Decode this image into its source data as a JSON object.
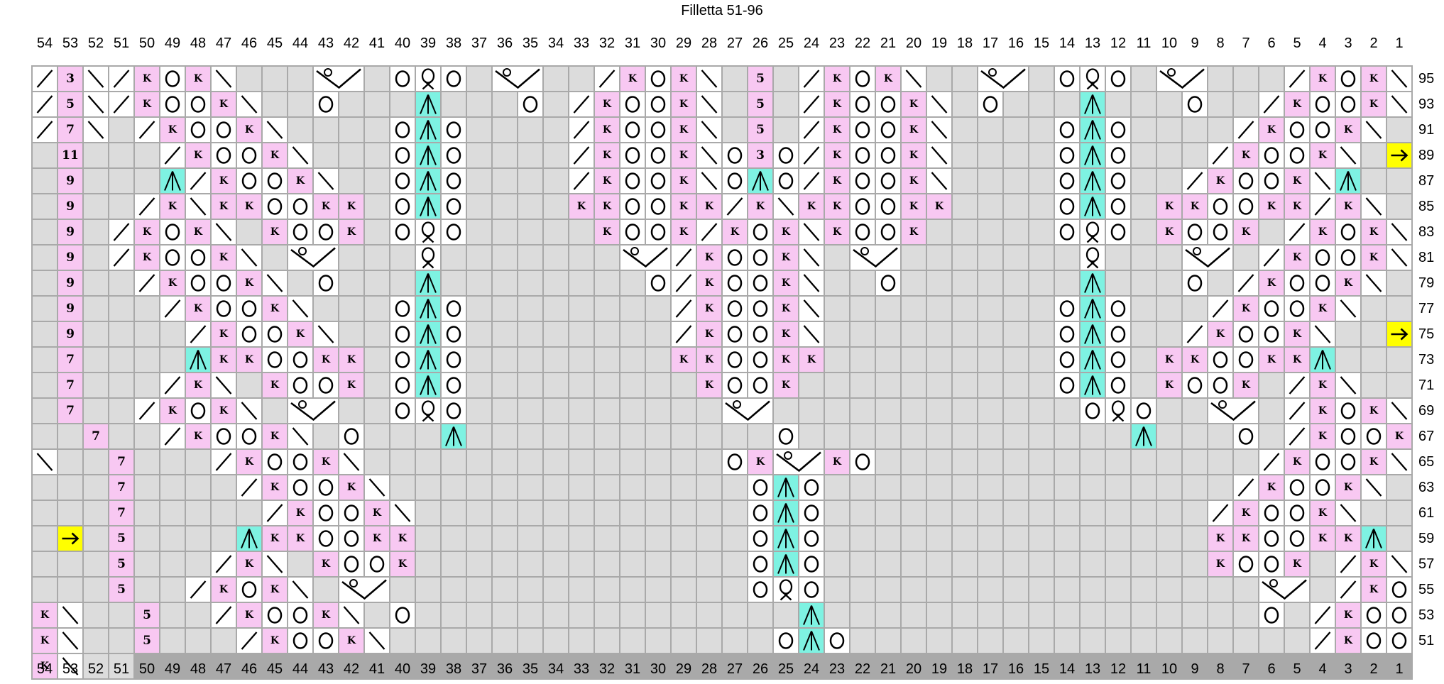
{
  "title": "Filletta 51-96",
  "colors": {
    "no_stitch": "#dcdcdc",
    "twisted_knit_bg": "#f8c8f2",
    "double_decrease_bg": "#7ef2e2",
    "arrow_bg": "#ffff00",
    "grid_line": "#a9a9a9",
    "symbol": "#000000",
    "cell_bg": "#ffffff"
  },
  "columns": [
    54,
    53,
    52,
    51,
    50,
    49,
    48,
    47,
    46,
    45,
    44,
    43,
    42,
    41,
    40,
    39,
    38,
    37,
    36,
    35,
    34,
    33,
    32,
    31,
    30,
    29,
    28,
    27,
    26,
    25,
    24,
    23,
    22,
    21,
    20,
    19,
    18,
    17,
    16,
    15,
    14,
    13,
    12,
    11,
    10,
    9,
    8,
    7,
    6,
    5,
    4,
    3,
    2,
    1
  ],
  "row_labels": [
    95,
    93,
    91,
    89,
    87,
    85,
    83,
    81,
    79,
    77,
    75,
    73,
    71,
    69,
    67,
    65,
    63,
    61,
    59,
    57,
    55,
    53,
    51
  ],
  "symbols_legend": {
    "/": "right-leaning-decrease",
    "\\": "left-leaning-decrease",
    "O": "yarn-over",
    "K": "twisted-knit",
    "A": "centered-double-decrease",
    "Q": "twisted-loop",
    "V": "gather-stitch",
    "v": "gather-stitch-continuation",
    "->": "row-direction-arrow",
    ".": "no-stitch",
    "3": "repeat-count",
    "5": "repeat-count",
    "7": "repeat-count",
    "9": "repeat-count",
    "11": "repeat-count"
  },
  "grid": {
    "rows": [
      {
        "label": "95",
        "cells": "/|3|\\|/|K|O|K|\\|.|.|.|V|v|.|O|Q|O|.|V|v|.|.|/|K|O|K|\\|.|5|.|/|K|O|K|\\|.|.|V|v|.|O|Q|O|.|V|v|.|.|.|/|K|O|K|\\"
      },
      {
        "label": "93",
        "cells": "/|5|\\|/|K|O|O|K|\\|.|.|O|.|.|.|A|.|.|.|O|.|/|K|O|O|K|\\|.|5|.|/|K|O|O|K|\\|.|O|.|.|.|A|.|.|.|O|.|.|/|K|O|O|K|\\"
      },
      {
        "label": "91",
        "cells": "/|7|\\|.|/|K|O|O|K|\\|.|.|.|.|O|A|O|.|.|.|.|/|K|O|O|K|\\|.|5|.|/|K|O|O|K|\\|.|.|.|.|O|A|O|.|.|.|.|/|K|O|O|K|\\|."
      },
      {
        "label": "89",
        "cells": ".|11|.|.|.|/|K|O|O|K|\\|.|.|.|O|A|O|.|.|.|.|/|K|O|O|K|\\|O|3|O|/|K|O|O|K|\\|.|.|.|.|O|A|O|.|.|.|/|K|O|O|K|\\|.|->"
      },
      {
        "label": "87",
        "cells": ".|9|.|.|.|A|/|K|O|O|K|\\|.|.|O|A|O|.|.|.|.|/|K|O|O|K|\\|O|A|O|/|K|O|O|K|\\|.|.|.|.|O|A|O|.|.|/|K|O|O|K|\\|A|.|."
      },
      {
        "label": "85",
        "cells": ".|9|.|.|/|K|\\|K|K|O|O|K|K|.|O|A|O|.|.|.|.|K|K|O|O|K|K|/|K|\\|K|K|O|O|K|K|.|.|.|.|O|A|O|.|K|K|O|O|K|K|/|K|\\|."
      },
      {
        "label": "83",
        "cells": ".|9|.|/|K|O|K|\\|.|K|O|O|K|.|O|Q|O|.|.|.|.|.|K|O|O|K|/|K|O|K|\\|K|O|O|K|.|.|.|.|.|O|Q|O|.|K|O|O|K|.|/|K|O|K|\\"
      },
      {
        "label": "81",
        "cells": ".|9|.|/|K|O|O|K|\\|.|V|v|.|.|.|Q|.|.|.|.|.|.|.|V|v|/|K|O|O|K|\\|.|V|v|.|.|.|.|.|.|.|Q|.|.|.|V|v|.|/|K|O|O|K|\\"
      },
      {
        "label": "79",
        "cells": ".|9|.|.|/|K|O|O|K|\\|.|O|.|.|.|A|.|.|.|.|.|.|.|.|O|/|K|O|O|K|\\|.|.|O|.|.|.|.|.|.|.|A|.|.|.|O|.|/|K|O|O|K|\\|."
      },
      {
        "label": "77",
        "cells": ".|9|.|.|.|/|K|O|O|K|\\|.|.|.|O|A|O|.|.|.|.|.|.|.|.|/|K|O|O|K|\\|.|.|.|.|.|.|.|.|.|O|A|O|.|.|.|/|K|O|O|K|\\|.|."
      },
      {
        "label": "75",
        "cells": ".|9|.|.|.|.|/|K|O|O|K|\\|.|.|O|A|O|.|.|.|.|.|.|.|.|/|K|O|O|K|\\|.|.|.|.|.|.|.|.|.|O|A|O|.|.|/|K|O|O|K|\\|.|.|->"
      },
      {
        "label": "73",
        "cells": ".|7|.|.|.|.|A|K|K|O|O|K|K|.|O|A|O|.|.|.|.|.|.|.|.|K|K|O|O|K|K|.|.|.|.|.|.|.|.|.|O|A|O|.|K|K|O|O|K|K|A|.|.|."
      },
      {
        "label": "71",
        "cells": ".|7|.|.|.|/|K|\\|.|K|O|O|K|.|O|A|O|.|.|.|.|.|.|.|.|.|K|O|O|K|.|.|.|.|.|.|.|.|.|.|O|A|O|.|K|O|O|K|.|/|K|\\|.|."
      },
      {
        "label": "69",
        "cells": ".|7|.|.|/|K|O|K|\\|.|V|v|.|.|O|Q|O|.|.|.|.|.|.|.|.|.|.|V|v|.|.|.|.|.|.|.|.|.|.|.|.|O|Q|O|.|.|V|v|.|/|K|O|K|\\|."
      },
      {
        "label": "67",
        "cells": ".|7|.|.|/|K|O|O|K|\\|.|O|.|.|.|A|.|.|.|.|.|.|.|.|.|.|.|.|O|.|.|.|.|.|.|.|.|.|.|.|.|.|A|.|.|.|O|.|/|K|O|O|K|\\|."
      },
      {
        "label": "65",
        "cells": ".|7|.|.|.|/|K|O|O|K|\\|.|.|.|.|.|.|.|.|.|.|.|.|.|.|O|K|V|v|K|O|.|.|.|.|.|.|.|.|.|.|.|.|.|.|.|/|K|O|O|K|\\|.|."
      },
      {
        "label": "63",
        "cells": ".|7|.|.|.|.|/|K|O|O|K|\\|.|.|.|.|.|.|.|.|.|.|.|.|.|.|O|A|O|.|.|.|.|.|.|.|.|.|.|.|.|.|.|.|.|/|K|O|O|K|\\|.|.|."
      },
      {
        "label": "61",
        "cells": ".|7|.|.|.|.|.|/|K|O|O|K|\\|.|.|.|.|.|.|.|.|.|.|.|.|.|O|A|O|.|.|.|.|.|.|.|.|.|.|.|.|.|.|.|/|K|O|O|K|\\|.|.|.|->"
      },
      {
        "label": "59",
        "cells": ".|5|.|.|.|.|A|K|K|O|O|K|K|.|.|.|.|.|.|.|.|.|.|.|.|.|O|A|O|.|.|.|.|.|.|.|.|.|.|.|.|.|.|.|K|K|O|O|K|K|A|.|.|."
      },
      {
        "label": "57",
        "cells": ".|5|.|.|.|/|K|\\|.|K|O|O|K|.|.|.|.|.|.|.|.|.|.|.|.|.|O|A|O|.|.|.|.|.|.|.|.|.|.|.|.|.|.|.|K|O|O|K|.|/|K|\\|.|."
      },
      {
        "label": "55",
        "cells": ".|5|.|.|/|K|O|K|\\|.|V|v|.|.|.|.|.|.|.|.|.|.|.|.|.|.|O|Q|O|.|.|.|.|.|.|.|.|.|.|.|.|.|.|.|.|.|V|v|.|/|K|O|K|\\|."
      },
      {
        "label": "53",
        "cells": ".|5|.|.|/|K|O|O|K|\\|.|O|.|.|.|.|.|.|.|.|.|.|.|.|.|.|.|A|.|.|.|.|.|.|.|.|.|.|.|.|.|.|.|.|.|O|.|/|K|O|O|K|\\|."
      },
      {
        "label": "51",
        "cells": ".|5|.|.|.|/|K|O|O|K|\\|.|.|.|.|.|.|.|.|.|.|.|.|.|.|.|O|A|O|.|.|.|.|.|.|.|.|.|.|.|.|.|.|.|.|.|.|/|K|O|O|K|\\|.|."
      }
    ]
  }
}
